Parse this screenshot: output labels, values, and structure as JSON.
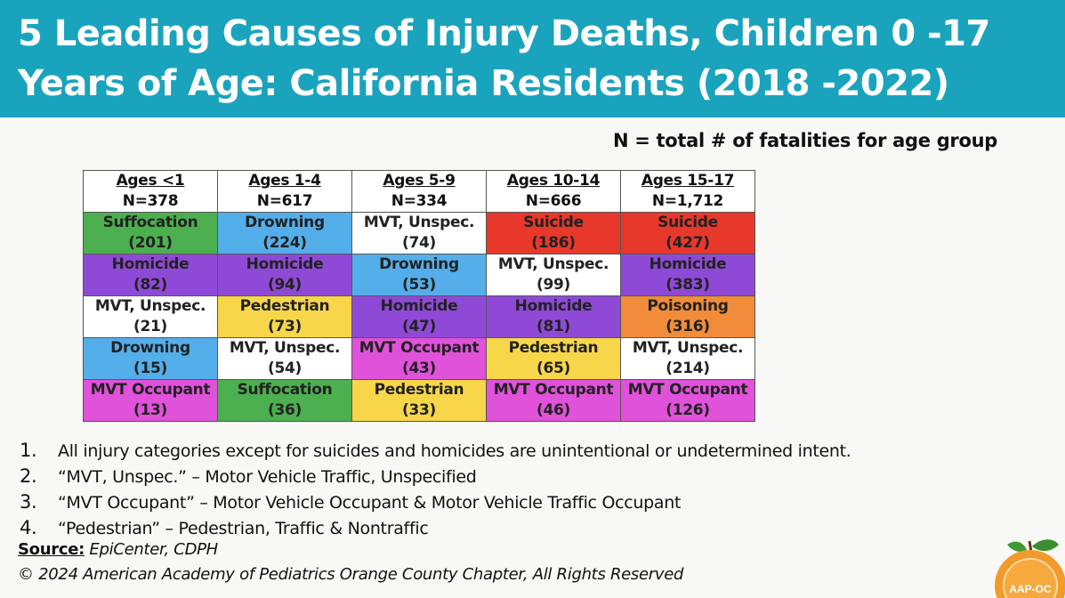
{
  "title": "5 Leading Causes of Injury Deaths, Children 0 -17 Years of Age: California Residents (2018 -2022)",
  "n_note": "N = total # of fatalities for age group",
  "colors": {
    "header_bg": "#1aa3bd",
    "Suffocation": "#4caf50",
    "Drowning": "#54aeea",
    "Homicide": "#8e4ad6",
    "Suicide": "#e8382b",
    "MVT, Unspec.": "#ffffff",
    "Pedestrian": "#f8d64a",
    "MVT Occupant": "#e052da",
    "Poisoning": "#f08c3a"
  },
  "columns": [
    {
      "age": "Ages <1",
      "n": "N=378"
    },
    {
      "age": "Ages 1-4",
      "n": "N=617"
    },
    {
      "age": "Ages 5-9",
      "n": "N=334"
    },
    {
      "age": "Ages 10-14",
      "n": "N=666"
    },
    {
      "age": "Ages 15-17",
      "n": "N=1,712"
    }
  ],
  "rows": [
    [
      {
        "cause": "Suffocation",
        "count": "(201)"
      },
      {
        "cause": "Drowning",
        "count": "(224)"
      },
      {
        "cause": "MVT, Unspec.",
        "count": "(74)"
      },
      {
        "cause": "Suicide",
        "count": "(186)"
      },
      {
        "cause": "Suicide",
        "count": "(427)"
      }
    ],
    [
      {
        "cause": "Homicide",
        "count": "(82)"
      },
      {
        "cause": "Homicide",
        "count": "(94)"
      },
      {
        "cause": "Drowning",
        "count": "(53)"
      },
      {
        "cause": "MVT, Unspec.",
        "count": "(99)"
      },
      {
        "cause": "Homicide",
        "count": "(383)"
      }
    ],
    [
      {
        "cause": "MVT, Unspec.",
        "count": "(21)"
      },
      {
        "cause": "Pedestrian",
        "count": "(73)"
      },
      {
        "cause": "Homicide",
        "count": "(47)"
      },
      {
        "cause": "Homicide",
        "count": "(81)"
      },
      {
        "cause": "Poisoning",
        "count": "(316)"
      }
    ],
    [
      {
        "cause": "Drowning",
        "count": "(15)"
      },
      {
        "cause": "MVT, Unspec.",
        "count": "(54)"
      },
      {
        "cause": "MVT Occupant",
        "count": "(43)"
      },
      {
        "cause": "Pedestrian",
        "count": "(65)"
      },
      {
        "cause": "MVT, Unspec.",
        "count": "(214)"
      }
    ],
    [
      {
        "cause": "MVT Occupant",
        "count": "(13)"
      },
      {
        "cause": "Suffocation",
        "count": "(36)"
      },
      {
        "cause": "Pedestrian",
        "count": "(33)"
      },
      {
        "cause": "MVT Occupant",
        "count": "(46)"
      },
      {
        "cause": "MVT Occupant",
        "count": "(126)"
      }
    ]
  ],
  "notes": [
    {
      "num": "1.",
      "text": "All injury categories except for suicides and homicides are unintentional or undetermined intent."
    },
    {
      "num": "2.",
      "text": "“MVT, Unspec.” – Motor Vehicle Traffic, Unspecified"
    },
    {
      "num": "3.",
      "text": "“MVT Occupant” – Motor Vehicle Occupant & Motor Vehicle Traffic Occupant"
    },
    {
      "num": "4.",
      "text": "“Pedestrian” – Pedestrian, Traffic & Nontraffic"
    }
  ],
  "source": {
    "label": "Source:",
    "text": "EpiCenter, CDPH"
  },
  "copyright": "© 2024 American Academy of Pediatrics Orange County Chapter, All Rights Reserved",
  "logo": {
    "icon": "orange-fruit-logo-icon",
    "text": "AAP-OC"
  }
}
